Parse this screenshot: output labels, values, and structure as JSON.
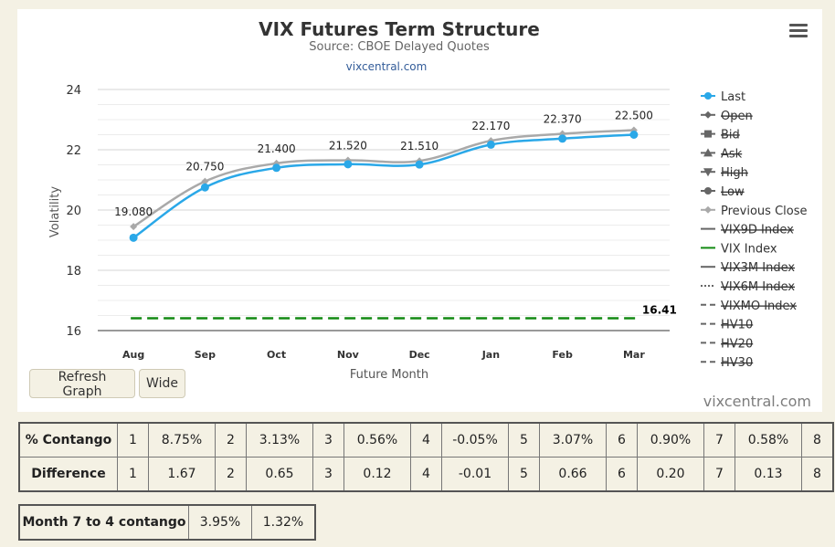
{
  "chart_data": {
    "type": "line",
    "title": "VIX Futures Term Structure",
    "subtitle": "Source: CBOE Delayed Quotes",
    "link": "vixcentral.com",
    "xlabel": "Future Month",
    "ylabel": "Volatility",
    "categories": [
      "Aug",
      "Sep",
      "Oct",
      "Nov",
      "Dec",
      "Jan",
      "Feb",
      "Mar"
    ],
    "ylim": [
      16,
      24
    ],
    "yticks": [
      "16",
      "18",
      "20",
      "22",
      "24"
    ],
    "legend_position": "right",
    "series": [
      {
        "name": "Last",
        "values": [
          19.08,
          20.75,
          21.4,
          21.52,
          21.51,
          22.17,
          22.37,
          22.5
        ],
        "labels": [
          "19.080",
          "20.750",
          "21.400",
          "21.520",
          "21.510",
          "22.170",
          "22.370",
          "22.500"
        ],
        "color": "#2aa8e8"
      },
      {
        "name": "Previous Close",
        "values": [
          19.45,
          20.95,
          21.55,
          21.65,
          21.63,
          22.3,
          22.53,
          22.65
        ],
        "color": "#a9a9a9"
      },
      {
        "name": "VIX Index",
        "value": 16.41,
        "label": "16.41",
        "color": "#138a13"
      }
    ],
    "legend": [
      {
        "name": "Last",
        "active": true
      },
      {
        "name": "Open",
        "active": false
      },
      {
        "name": "Bid",
        "active": false
      },
      {
        "name": "Ask",
        "active": false
      },
      {
        "name": "High",
        "active": false
      },
      {
        "name": "Low",
        "active": false
      },
      {
        "name": "Previous Close",
        "active": true
      },
      {
        "name": "VIX9D Index",
        "active": false
      },
      {
        "name": "VIX Index",
        "active": true
      },
      {
        "name": "VIX3M Index",
        "active": false
      },
      {
        "name": "VIX6M Index",
        "active": false
      },
      {
        "name": "VIXMO Index",
        "active": false
      },
      {
        "name": "HV10",
        "active": false
      },
      {
        "name": "HV20",
        "active": false
      },
      {
        "name": "HV30",
        "active": false
      }
    ],
    "grid": true
  },
  "buttons": {
    "refresh": "Refresh Graph",
    "wide": "Wide"
  },
  "brand": "vixcentral.com",
  "contango_table": {
    "rows": [
      {
        "label": "% Contango",
        "cells": [
          "1",
          "8.75%",
          "2",
          "3.13%",
          "3",
          "0.56%",
          "4",
          "-0.05%",
          "5",
          "3.07%",
          "6",
          "0.90%",
          "7",
          "0.58%",
          "8"
        ]
      },
      {
        "label": "Difference",
        "cells": [
          "1",
          "1.67",
          "2",
          "0.65",
          "3",
          "0.12",
          "4",
          "-0.01",
          "5",
          "0.66",
          "6",
          "0.20",
          "7",
          "0.13",
          "8"
        ]
      }
    ]
  },
  "month74": {
    "label": "Month 7 to 4 contango",
    "values": [
      "3.95%",
      "1.32%"
    ]
  }
}
